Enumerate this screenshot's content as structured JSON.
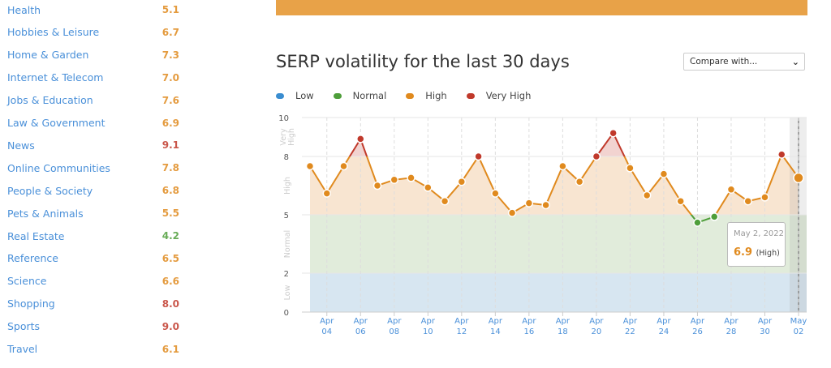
{
  "sidebar": {
    "items": [
      {
        "label": "Health",
        "score": "5.1",
        "level": "high"
      },
      {
        "label": "Hobbies & Leisure",
        "score": "6.7",
        "level": "high"
      },
      {
        "label": "Home & Garden",
        "score": "7.3",
        "level": "high"
      },
      {
        "label": "Internet & Telecom",
        "score": "7.0",
        "level": "high"
      },
      {
        "label": "Jobs & Education",
        "score": "7.6",
        "level": "high"
      },
      {
        "label": "Law & Government",
        "score": "6.9",
        "level": "high"
      },
      {
        "label": "News",
        "score": "9.1",
        "level": "very_high"
      },
      {
        "label": "Online Communities",
        "score": "7.8",
        "level": "high"
      },
      {
        "label": "People & Society",
        "score": "6.8",
        "level": "high"
      },
      {
        "label": "Pets & Animals",
        "score": "5.5",
        "level": "high"
      },
      {
        "label": "Real Estate",
        "score": "4.2",
        "level": "normal"
      },
      {
        "label": "Reference",
        "score": "6.5",
        "level": "high"
      },
      {
        "label": "Science",
        "score": "6.6",
        "level": "high"
      },
      {
        "label": "Shopping",
        "score": "8.0",
        "level": "very_high"
      },
      {
        "label": "Sports",
        "score": "9.0",
        "level": "very_high"
      },
      {
        "label": "Travel",
        "score": "6.1",
        "level": "high"
      }
    ]
  },
  "colors": {
    "low": "#3a8dd0",
    "normal": "#4e9e3a",
    "high": "#e08a1e",
    "very_high": "#c0392b",
    "link": "#4a90d9",
    "topbar": "#e8a248"
  },
  "compare": {
    "label": "Compare with..."
  },
  "tooltip": {
    "date": "May 2, 2022",
    "value": "6.9",
    "category": "(High)"
  },
  "chart_data": {
    "type": "line",
    "title": "SERP volatility for the last 30 days",
    "legend": [
      {
        "name": "Low",
        "key": "low"
      },
      {
        "name": "Normal",
        "key": "normal"
      },
      {
        "name": "High",
        "key": "high"
      },
      {
        "name": "Very High",
        "key": "very_high"
      }
    ],
    "legend_position": "top-left",
    "ylim": [
      0,
      10
    ],
    "yticks": [
      "0",
      "2",
      "5",
      "8",
      "10"
    ],
    "bands": [
      {
        "name": "Low",
        "from": 0,
        "to": 2
      },
      {
        "name": "Normal",
        "from": 2,
        "to": 5
      },
      {
        "name": "High",
        "from": 5,
        "to": 8
      },
      {
        "name": "Very High",
        "from": 8,
        "to": 10
      }
    ],
    "x": [
      "Apr 03",
      "Apr 04",
      "Apr 05",
      "Apr 06",
      "Apr 07",
      "Apr 08",
      "Apr 09",
      "Apr 10",
      "Apr 11",
      "Apr 12",
      "Apr 13",
      "Apr 14",
      "Apr 15",
      "Apr 16",
      "Apr 17",
      "Apr 18",
      "Apr 19",
      "Apr 20",
      "Apr 21",
      "Apr 22",
      "Apr 23",
      "Apr 24",
      "Apr 25",
      "Apr 26",
      "Apr 27",
      "Apr 28",
      "Apr 29",
      "Apr 30",
      "May 01",
      "May 02"
    ],
    "xticks": [
      [
        "Apr",
        "04"
      ],
      [
        "Apr",
        "06"
      ],
      [
        "Apr",
        "08"
      ],
      [
        "Apr",
        "10"
      ],
      [
        "Apr",
        "12"
      ],
      [
        "Apr",
        "14"
      ],
      [
        "Apr",
        "16"
      ],
      [
        "Apr",
        "18"
      ],
      [
        "Apr",
        "20"
      ],
      [
        "Apr",
        "22"
      ],
      [
        "Apr",
        "24"
      ],
      [
        "Apr",
        "26"
      ],
      [
        "Apr",
        "28"
      ],
      [
        "Apr",
        "30"
      ],
      [
        "May",
        "02"
      ]
    ],
    "values": [
      7.5,
      6.1,
      7.5,
      8.9,
      6.5,
      6.8,
      6.9,
      6.4,
      5.7,
      6.7,
      8.0,
      6.1,
      5.1,
      5.6,
      5.5,
      7.5,
      6.7,
      8.0,
      9.2,
      7.4,
      6.0,
      7.1,
      5.7,
      4.6,
      4.9,
      6.3,
      5.7,
      5.9,
      8.1,
      6.9
    ],
    "highlighted": "May 02",
    "grid": true
  }
}
